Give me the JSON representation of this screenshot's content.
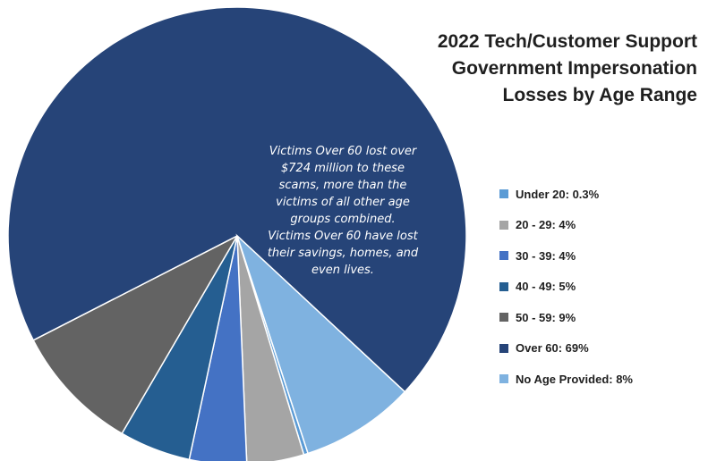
{
  "colors": {
    "background": "#ffffff",
    "slice_border": "#ffffff",
    "annotation_text": "#ffffff"
  },
  "chart_data": {
    "type": "pie",
    "title_lines": [
      "2022 Tech/Customer  Support",
      "Government  Impersonation",
      "Losses by Age Range"
    ],
    "slices": [
      {
        "label": "Under 20:  0.3%",
        "value": 0.3,
        "color": "#5b9bd5"
      },
      {
        "label": "20 - 29:  4%",
        "value": 4,
        "color": "#a5a5a5"
      },
      {
        "label": "30 - 39:  4%",
        "value": 4,
        "color": "#4472c4"
      },
      {
        "label": "40 - 49:  5%",
        "value": 5,
        "color": "#255e91"
      },
      {
        "label": "50 - 59:  9%",
        "value": 9,
        "color": "#636363"
      },
      {
        "label": "Over 60:  69%",
        "value": 69,
        "color": "#264478"
      },
      {
        "label": "No Age Provided:  8%",
        "value": 8,
        "color": "#7fb2e0"
      }
    ],
    "annotation_lines": [
      "Victims Over 60 lost over",
      "$724  million to these",
      "scams, more than the",
      "victims of all other age",
      "groups combined.",
      "Victims Over 60 have lost",
      "their savings, homes, and",
      "even lives."
    ],
    "legend_position": "right"
  }
}
